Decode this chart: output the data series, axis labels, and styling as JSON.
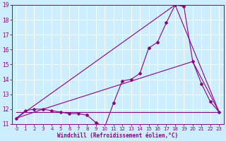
{
  "xlabel": "Windchill (Refroidissement éolien,°C)",
  "bg_color": "#cceeff",
  "line_color": "#880088",
  "grid_color": "#ffffff",
  "xlim": [
    -0.5,
    23.5
  ],
  "ylim": [
    11,
    19
  ],
  "yticks": [
    11,
    12,
    13,
    14,
    15,
    16,
    17,
    18,
    19
  ],
  "xticks": [
    0,
    1,
    2,
    3,
    4,
    5,
    6,
    7,
    8,
    9,
    10,
    11,
    12,
    13,
    14,
    15,
    16,
    17,
    18,
    19,
    20,
    21,
    22,
    23
  ],
  "series1_x": [
    0,
    1,
    2,
    3,
    4,
    5,
    6,
    7,
    8,
    9,
    10,
    11,
    12,
    13,
    14,
    15,
    16,
    17,
    18,
    19,
    20,
    21,
    22,
    23
  ],
  "series1_y": [
    11.4,
    11.9,
    12.0,
    12.0,
    11.9,
    11.8,
    11.7,
    11.7,
    11.6,
    11.1,
    10.8,
    12.4,
    13.9,
    14.0,
    14.4,
    16.1,
    16.5,
    17.8,
    19.0,
    18.9,
    15.2,
    13.7,
    12.5,
    11.8
  ],
  "series2_x": [
    0,
    3,
    20,
    23
  ],
  "series2_y": [
    11.4,
    12.0,
    15.2,
    11.8
  ],
  "series3_x": [
    0,
    18,
    23
  ],
  "series3_y": [
    11.4,
    19.0,
    11.8
  ],
  "series4_x": [
    0,
    23
  ],
  "series4_y": [
    11.8,
    11.8
  ],
  "xlabel_fontsize": 5.5,
  "tick_fontsize": 5.0,
  "ytick_fontsize": 5.5
}
